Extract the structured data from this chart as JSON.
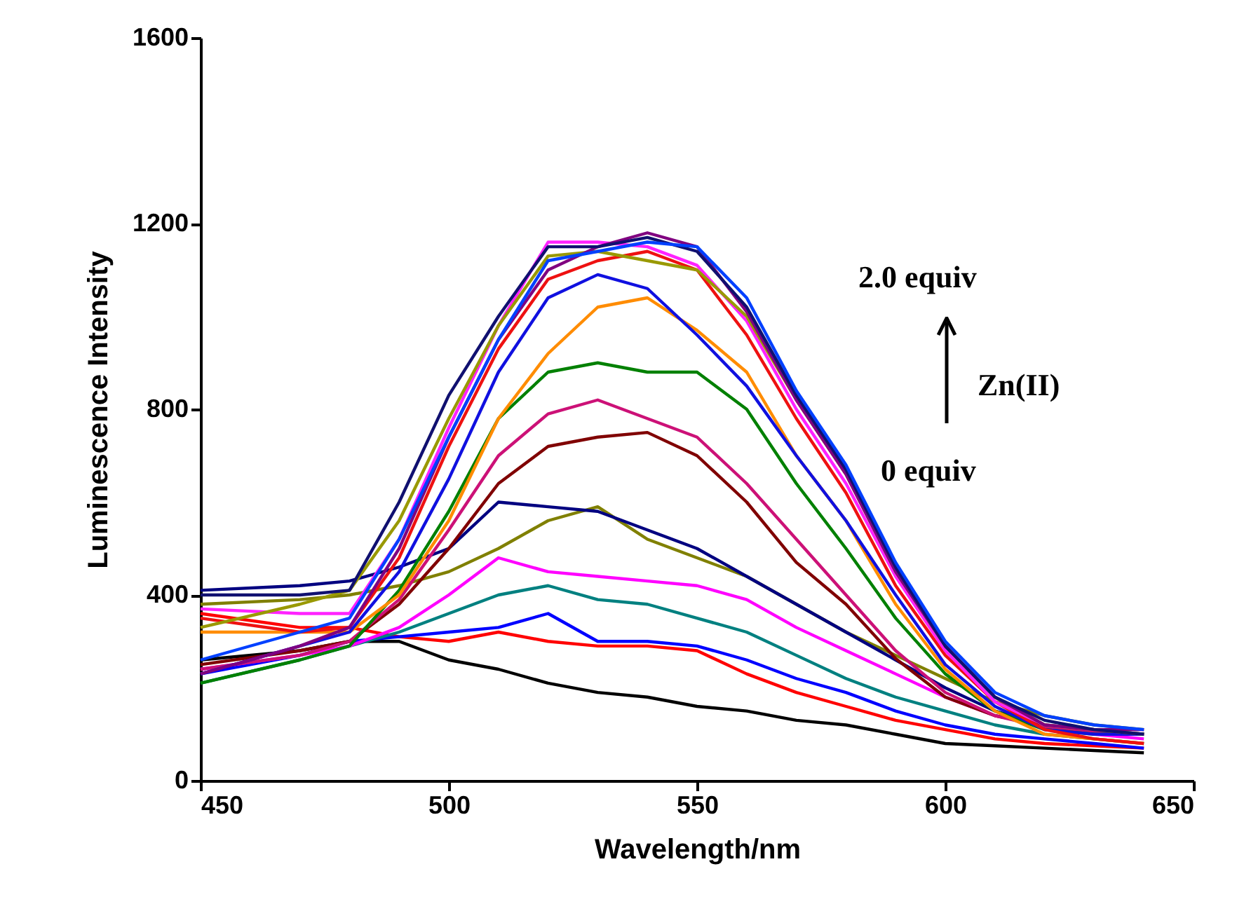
{
  "chart_data": {
    "type": "line",
    "xlabel": "Wavelength/nm",
    "ylabel": "Luminescence Intensity",
    "xlim": [
      450,
      650
    ],
    "xticks": [
      450,
      500,
      550,
      600,
      650
    ],
    "ylim": [
      0,
      1600
    ],
    "yticks": [
      0,
      400,
      800,
      1200,
      1600
    ],
    "grid": false,
    "legend": false,
    "marker": "none",
    "line_style": "solid",
    "x": [
      450,
      470,
      480,
      490,
      500,
      510,
      520,
      530,
      540,
      550,
      560,
      570,
      580,
      590,
      600,
      610,
      620,
      630,
      640
    ],
    "series": [
      {
        "color": "#000000",
        "values": [
          260,
          280,
          300,
          300,
          260,
          240,
          210,
          190,
          180,
          160,
          150,
          130,
          120,
          100,
          80,
          75,
          70,
          65,
          60
        ]
      },
      {
        "color": "#ff0000",
        "values": [
          360,
          330,
          330,
          310,
          300,
          320,
          300,
          290,
          290,
          280,
          230,
          190,
          160,
          130,
          110,
          90,
          80,
          75,
          70
        ]
      },
      {
        "color": "#0000ff",
        "values": [
          230,
          270,
          300,
          310,
          320,
          330,
          360,
          300,
          300,
          290,
          260,
          220,
          190,
          150,
          120,
          100,
          90,
          80,
          70
        ]
      },
      {
        "color": "#008080",
        "values": [
          210,
          260,
          290,
          320,
          360,
          400,
          420,
          390,
          380,
          350,
          320,
          270,
          220,
          180,
          150,
          120,
          100,
          90,
          80
        ]
      },
      {
        "color": "#ff00ff",
        "values": [
          240,
          270,
          290,
          330,
          400,
          480,
          450,
          440,
          430,
          420,
          390,
          330,
          280,
          230,
          180,
          140,
          120,
          100,
          90
        ]
      },
      {
        "color": "#808000",
        "values": [
          380,
          390,
          400,
          420,
          450,
          500,
          560,
          590,
          520,
          480,
          440,
          380,
          320,
          270,
          220,
          170,
          140,
          120,
          110
        ]
      },
      {
        "color": "#000080",
        "values": [
          410,
          420,
          430,
          460,
          500,
          600,
          590,
          580,
          540,
          500,
          440,
          380,
          320,
          260,
          200,
          150,
          120,
          110,
          100
        ]
      },
      {
        "color": "#800000",
        "values": [
          250,
          280,
          300,
          380,
          500,
          640,
          720,
          740,
          750,
          700,
          600,
          470,
          380,
          263,
          180,
          140,
          120,
          105,
          100
        ]
      },
      {
        "color": "#cc1177",
        "values": [
          240,
          270,
          300,
          390,
          540,
          700,
          790,
          820,
          780,
          740,
          640,
          520,
          400,
          280,
          190,
          140,
          115,
          105,
          100
        ]
      },
      {
        "color": "#008000",
        "values": [
          210,
          260,
          290,
          410,
          580,
          780,
          880,
          900,
          880,
          880,
          800,
          640,
          500,
          350,
          230,
          150,
          110,
          100,
          100
        ]
      },
      {
        "color": "#ff8c00",
        "values": [
          320,
          320,
          320,
          400,
          560,
          780,
          920,
          1020,
          1040,
          970,
          880,
          700,
          560,
          380,
          240,
          150,
          100,
          90,
          80
        ]
      },
      {
        "color": "#1010e0",
        "values": [
          230,
          290,
          320,
          450,
          650,
          880,
          1040,
          1090,
          1060,
          960,
          850,
          700,
          560,
          400,
          250,
          160,
          110,
          100,
          100
        ]
      },
      {
        "color": "#ee1111",
        "values": [
          350,
          320,
          330,
          480,
          720,
          930,
          1080,
          1120,
          1140,
          1100,
          960,
          780,
          620,
          420,
          270,
          170,
          110,
          90,
          80
        ]
      },
      {
        "color": "#ff22ff",
        "values": [
          370,
          360,
          360,
          520,
          760,
          980,
          1160,
          1160,
          1150,
          1110,
          990,
          800,
          640,
          440,
          280,
          170,
          120,
          110,
          110
        ]
      },
      {
        "color": "#999900",
        "values": [
          330,
          380,
          410,
          560,
          780,
          980,
          1130,
          1140,
          1120,
          1100,
          1000,
          820,
          660,
          450,
          290,
          180,
          120,
          110,
          100
        ]
      },
      {
        "color": "#800080",
        "values": [
          230,
          290,
          330,
          500,
          740,
          950,
          1100,
          1150,
          1180,
          1150,
          1010,
          820,
          660,
          450,
          290,
          180,
          120,
          110,
          110
        ]
      },
      {
        "color": "#101070",
        "values": [
          400,
          400,
          410,
          600,
          830,
          1000,
          1150,
          1150,
          1170,
          1140,
          1020,
          830,
          670,
          460,
          290,
          180,
          130,
          110,
          100
        ]
      },
      {
        "color": "#0040ff",
        "values": [
          260,
          320,
          350,
          520,
          740,
          950,
          1120,
          1140,
          1160,
          1150,
          1040,
          840,
          680,
          470,
          300,
          190,
          140,
          120,
          110
        ]
      }
    ],
    "annotations": [
      "2.0 equiv",
      "Zn(II)",
      "0 equiv"
    ]
  }
}
